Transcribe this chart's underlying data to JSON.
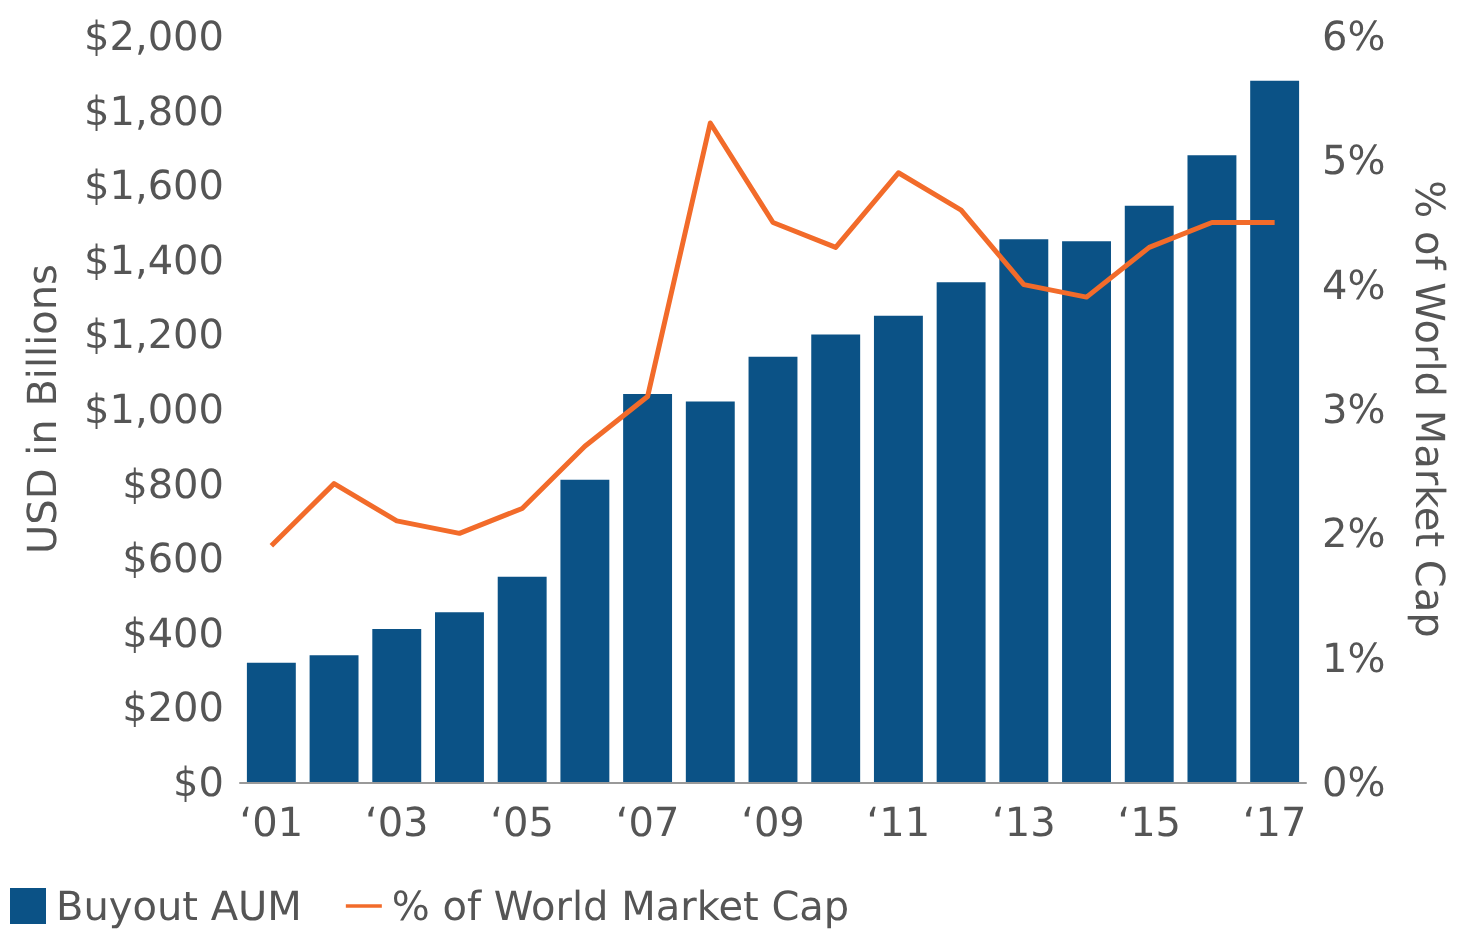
{
  "chart_data": {
    "type": "bar",
    "ylabel": "USD in Billions",
    "y2label": "% of World Market Cap",
    "categories": [
      "‘01",
      null,
      "‘03",
      null,
      "‘05",
      null,
      "‘07",
      null,
      "‘09",
      null,
      "‘11",
      null,
      "‘13",
      null,
      "‘15",
      null,
      "‘17"
    ],
    "series": [
      {
        "name": "Buyout AUM",
        "color": "#0b5286",
        "values": [
          320,
          340,
          410,
          455,
          550,
          810,
          1040,
          1020,
          1140,
          1200,
          1250,
          1340,
          1455,
          1450,
          1545,
          1680,
          1880
        ]
      },
      {
        "name": "% of World Market Cap",
        "type": "line",
        "axis": "y2",
        "color": "#f26b2a",
        "values": [
          1.9,
          2.4,
          2.1,
          2.0,
          2.2,
          2.7,
          3.1,
          5.3,
          4.5,
          4.3,
          4.9,
          4.6,
          4.0,
          3.9,
          4.3,
          4.5,
          4.5
        ]
      }
    ],
    "ylim": [
      0,
      2000
    ],
    "yticks": [
      {
        "value": 0,
        "label": "$0"
      },
      {
        "value": 200,
        "label": "$200"
      },
      {
        "value": 400,
        "label": "$400"
      },
      {
        "value": 600,
        "label": "$600"
      },
      {
        "value": 800,
        "label": "$800"
      },
      {
        "value": 1000,
        "label": "$1,000"
      },
      {
        "value": 1200,
        "label": "$1,200"
      },
      {
        "value": 1400,
        "label": "$1,400"
      },
      {
        "value": 1600,
        "label": "$1,600"
      },
      {
        "value": 1800,
        "label": "$1,800"
      },
      {
        "value": 2000,
        "label": "$2,000"
      }
    ],
    "y2lim": [
      0,
      6
    ],
    "y2ticks": [
      {
        "value": 0,
        "label": "0%"
      },
      {
        "value": 1,
        "label": "1%"
      },
      {
        "value": 2,
        "label": "2%"
      },
      {
        "value": 3,
        "label": "3%"
      },
      {
        "value": 4,
        "label": "4%"
      },
      {
        "value": 5,
        "label": "5%"
      },
      {
        "value": 6,
        "label": "6%"
      }
    ],
    "grid": false,
    "legend": "bottom left",
    "marker": "none",
    "line_style": "solid"
  }
}
